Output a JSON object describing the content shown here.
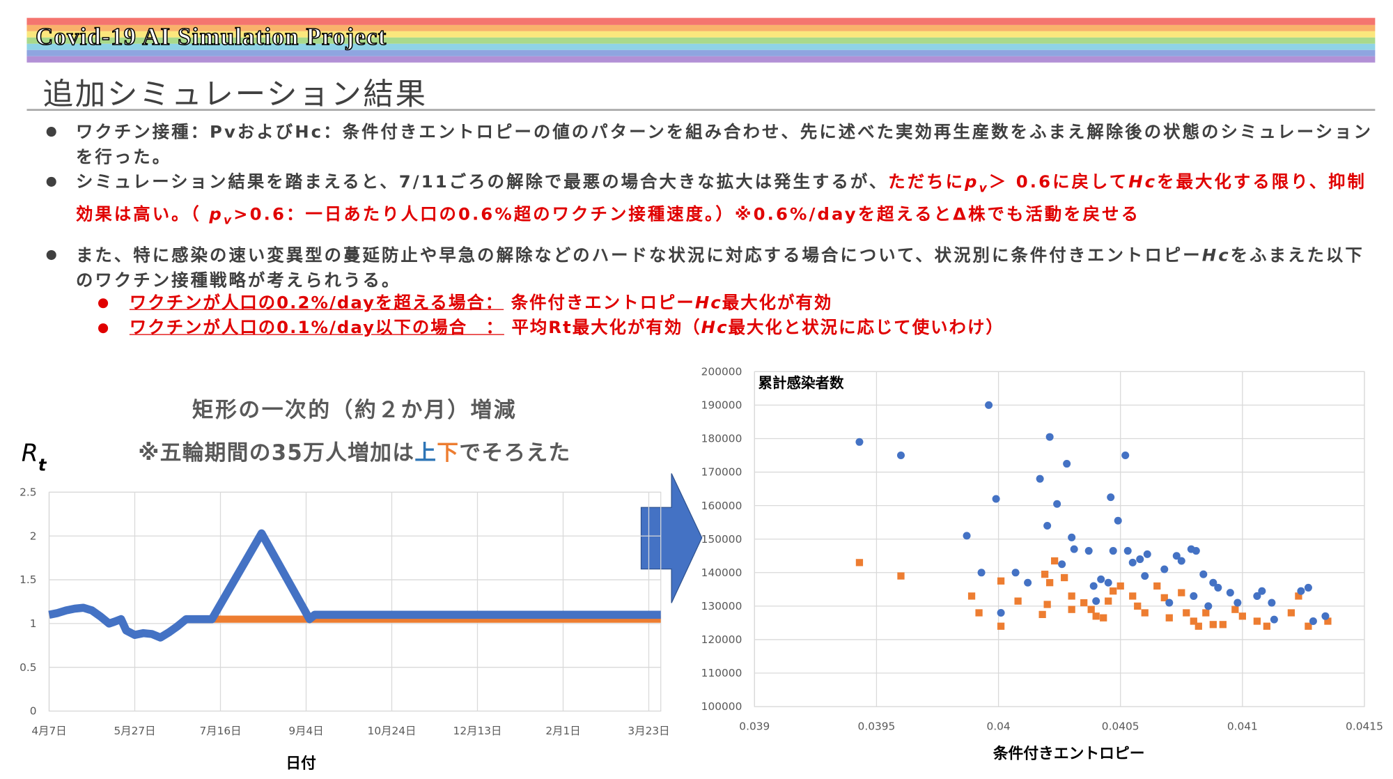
{
  "header": {
    "banner": "Covid-19 AI Simulation Project",
    "title": "追加シミュレーション結果"
  },
  "bullets": [
    {
      "runs": [
        {
          "text": "ワクチン接種：PvおよびHc：条件付きエントロピーの値のパターンを組み合わせ、先に述べた実効再生産数をふまえ解除後の状態のシミュレーションを行った。"
        }
      ]
    },
    {
      "runs": [
        {
          "text": "シミュレーション結果を踏まえると、7/11ごろの解除で最悪の場合大きな拡大は発生するが、"
        },
        {
          "text": "ただちに",
          "color": "#e00000"
        },
        {
          "text": "p",
          "color": "#e00000",
          "italic": true
        },
        {
          "text": "v",
          "color": "#e00000",
          "italic": true,
          "sub": true
        },
        {
          "text": "＞ 0.6に戻して",
          "color": "#e00000"
        },
        {
          "text": "Hc",
          "color": "#e00000",
          "italic": true
        },
        {
          "text": "を最大化する限り、抑制効果は高い。（ ",
          "color": "#e00000"
        },
        {
          "text": "p",
          "color": "#e00000",
          "italic": true
        },
        {
          "text": "v",
          "color": "#e00000",
          "italic": true,
          "sub": true
        },
        {
          "text": ">0.6：一日あたり人口の0.6%超のワクチン接種速度。）※0.6%/dayを超えるとΔ株でも活動を戻せる",
          "color": "#e00000"
        }
      ]
    },
    {
      "runs": [
        {
          "text": "また、特に感染の速い変異型の蔓延防止や早急の解除などのハードな状況に対応する場合について、状況別に条件付きエントロピー"
        },
        {
          "text": "Hc",
          "italic": true
        },
        {
          "text": "をふまえた以下のワクチン接種戦略が考えられうる。"
        }
      ]
    }
  ],
  "sub_bullets": [
    {
      "runs": [
        {
          "text": "ワクチンが人口の0.2%/dayを超える場合：",
          "color": "#e00000",
          "underline": true
        },
        {
          "text": " 条件付きエントロピー",
          "color": "#e00000"
        },
        {
          "text": "Hc",
          "color": "#e00000",
          "italic": true
        },
        {
          "text": "最大化が有効",
          "color": "#e00000"
        }
      ]
    },
    {
      "runs": [
        {
          "text": "ワクチンが人口の0.1%/day以下の場合　：",
          "color": "#e00000",
          "underline": true
        },
        {
          "text": " 平均Rt最大化が有効（",
          "color": "#e00000"
        },
        {
          "text": "Hc",
          "color": "#e00000",
          "italic": true
        },
        {
          "text": "最大化と状況に応じて使いわけ）",
          "color": "#e00000"
        }
      ]
    }
  ],
  "chart_data": [
    {
      "type": "line",
      "title": "矩形の一次的（約２か月）増減",
      "subtitle": [
        {
          "text": "※五輪期間の35万人増加は"
        },
        {
          "text": "上",
          "color": "#2e75b6"
        },
        {
          "text": "下",
          "color": "#ed7d31"
        },
        {
          "text": "でそろえた"
        }
      ],
      "y_label": [
        {
          "text": "R"
        },
        {
          "text": "t",
          "sub": true
        }
      ],
      "x_label": "日付",
      "xlim": [
        0,
        357
      ],
      "xticks": [
        {
          "value": 0,
          "label": "4月7日"
        },
        {
          "value": 50,
          "label": "5月27日"
        },
        {
          "value": 100,
          "label": "7月16日"
        },
        {
          "value": 150,
          "label": "9月4日"
        },
        {
          "value": 200,
          "label": "10月24日"
        },
        {
          "value": 250,
          "label": "12月13日"
        },
        {
          "value": 300,
          "label": "2月1日"
        },
        {
          "value": 350,
          "label": "3月23日"
        }
      ],
      "ylim": [
        0,
        2.5
      ],
      "yticks": [
        0,
        0.5,
        1,
        1.5,
        2,
        2.5
      ],
      "grid": true,
      "series": [
        {
          "color": "#ed7d31",
          "x": [
            0,
            5,
            10,
            15,
            20,
            25,
            30,
            35,
            38,
            42,
            45,
            50,
            55,
            60,
            65,
            70,
            75,
            80,
            85,
            90,
            95,
            357
          ],
          "values": [
            1.1,
            1.12,
            1.15,
            1.17,
            1.18,
            1.15,
            1.08,
            1.0,
            1.02,
            1.05,
            0.92,
            0.87,
            0.89,
            0.88,
            0.84,
            0.9,
            0.97,
            1.05,
            1.05,
            1.05,
            1.05,
            1.05
          ]
        },
        {
          "color": "#4472c4",
          "x": [
            0,
            5,
            10,
            15,
            20,
            25,
            30,
            35,
            38,
            42,
            45,
            50,
            55,
            60,
            65,
            70,
            75,
            80,
            85,
            90,
            95,
            124,
            152,
            155,
            160,
            357
          ],
          "values": [
            1.1,
            1.12,
            1.15,
            1.17,
            1.18,
            1.15,
            1.08,
            1.0,
            1.02,
            1.05,
            0.92,
            0.87,
            0.89,
            0.88,
            0.84,
            0.9,
            0.97,
            1.05,
            1.05,
            1.05,
            1.05,
            2.03,
            1.05,
            1.1,
            1.1,
            1.1
          ]
        }
      ]
    },
    {
      "type": "scatter",
      "annotation": "累計感染者数",
      "x_label": "条件付きエントロピー",
      "xlim": [
        0.039,
        0.0415
      ],
      "xticks": [
        0.039,
        0.0395,
        0.04,
        0.0405,
        0.041,
        0.0415
      ],
      "ylim": [
        100000,
        200000
      ],
      "yticks": [
        100000,
        110000,
        120000,
        130000,
        140000,
        150000,
        160000,
        170000,
        180000,
        190000,
        200000
      ],
      "grid": true,
      "series": [
        {
          "color": "#4472c4",
          "marker": "circle",
          "x": [
            0.03943,
            0.0396,
            0.03996,
            0.03987,
            0.03999,
            0.03993,
            0.04001,
            0.04007,
            0.04017,
            0.04021,
            0.0402,
            0.04024,
            0.04028,
            0.0403,
            0.04046,
            0.04049,
            0.04052,
            0.04026,
            0.04031,
            0.04037,
            0.04042,
            0.04047,
            0.04053,
            0.04058,
            0.04061,
            0.04068,
            0.04073,
            0.04075,
            0.04079,
            0.04081,
            0.04084,
            0.04088,
            0.0409,
            0.04095,
            0.04098,
            0.04106,
            0.04108,
            0.04112,
            0.04113,
            0.04124,
            0.04127,
            0.04129,
            0.04134,
            0.0404,
            0.04045,
            0.0406,
            0.0407,
            0.0408,
            0.04086,
            0.04012,
            0.04039,
            0.04055
          ],
          "values": [
            179000,
            175000,
            190000,
            151000,
            162000,
            140000,
            128000,
            140000,
            168000,
            180500,
            154000,
            160500,
            172500,
            150500,
            162500,
            155500,
            175000,
            142500,
            147000,
            146500,
            138000,
            146500,
            146500,
            144000,
            145500,
            141000,
            145000,
            143500,
            147000,
            146500,
            139500,
            137000,
            135500,
            134000,
            131000,
            133000,
            134500,
            131000,
            126000,
            134500,
            135500,
            125500,
            127000,
            131500,
            137000,
            139000,
            131000,
            133000,
            130000,
            137000,
            136000,
            143000
          ]
        },
        {
          "color": "#ed7d31",
          "marker": "square",
          "x": [
            0.03943,
            0.0396,
            0.03989,
            0.03992,
            0.04001,
            0.04001,
            0.04008,
            0.04019,
            0.04018,
            0.0402,
            0.04023,
            0.04021,
            0.04027,
            0.0403,
            0.04035,
            0.04038,
            0.0404,
            0.04043,
            0.04047,
            0.0405,
            0.04055,
            0.04057,
            0.0406,
            0.04065,
            0.04068,
            0.0407,
            0.04075,
            0.04077,
            0.0408,
            0.04082,
            0.04085,
            0.04088,
            0.04092,
            0.04097,
            0.041,
            0.04106,
            0.0411,
            0.0412,
            0.04123,
            0.04127,
            0.04135,
            0.04045,
            0.0403
          ],
          "values": [
            143000,
            139000,
            133000,
            128000,
            124000,
            137500,
            131500,
            139500,
            127500,
            130500,
            143500,
            137000,
            138500,
            133000,
            131000,
            129000,
            127000,
            126500,
            134500,
            136000,
            133000,
            130000,
            128000,
            136000,
            132500,
            126500,
            134000,
            128000,
            125500,
            124000,
            128000,
            124500,
            124500,
            129000,
            127000,
            125500,
            124000,
            128000,
            133000,
            124000,
            125500,
            131500,
            129000
          ]
        }
      ]
    }
  ]
}
